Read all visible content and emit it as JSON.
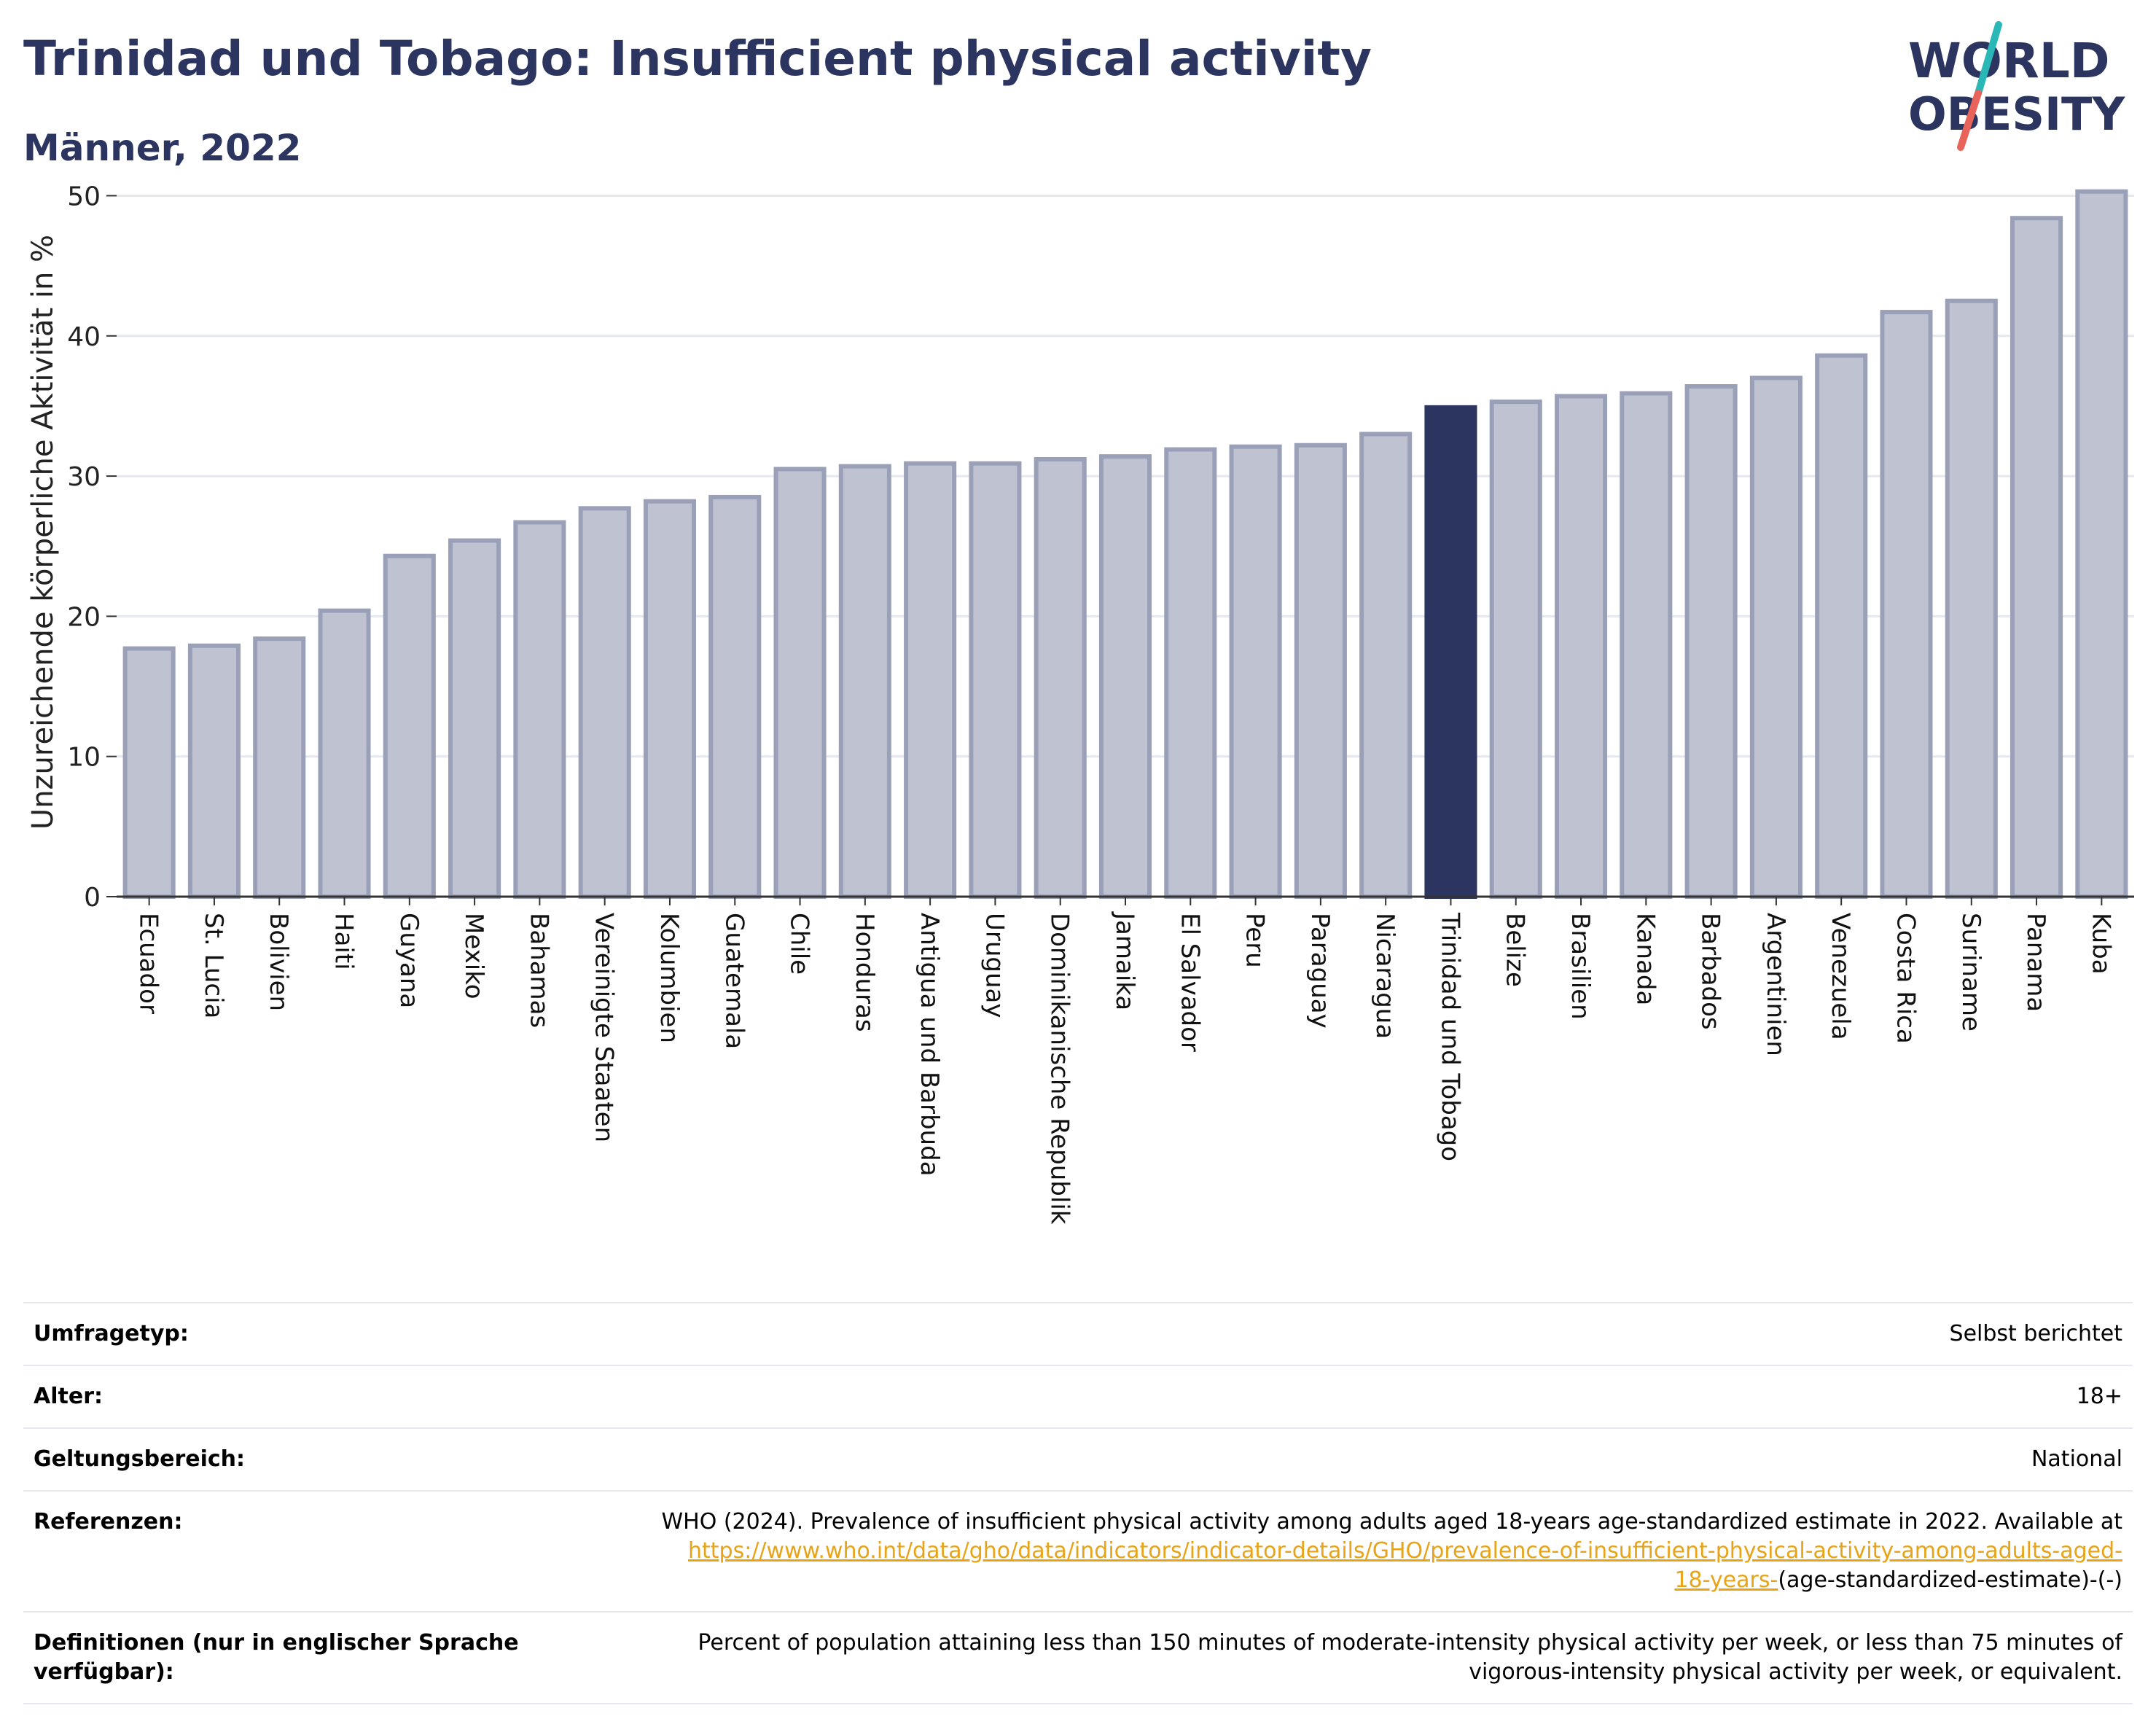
{
  "header": {
    "title": "Trinidad und Tobago: Insufficient physical activity",
    "subtitle": "Männer, 2022"
  },
  "logo": {
    "line1": "WORLD",
    "line2": "OBESITY",
    "colors": {
      "text": "#2b3560",
      "slash_top": "#2ab7b5",
      "slash_bottom": "#e8635a"
    }
  },
  "colors": {
    "bar_fill": "#bfc3d1",
    "bar_stroke": "#9aa0b8",
    "highlight": "#2b3560",
    "grid": "#e6e8ef",
    "axis": "#333333"
  },
  "chart_data": {
    "type": "bar",
    "title": "Trinidad und Tobago: Insufficient physical activity",
    "subtitle": "Männer, 2022",
    "xlabel": "",
    "ylabel": "Unzureichende körperliche Aktivität in %",
    "ylim": [
      0,
      52
    ],
    "yticks": [
      0,
      10,
      20,
      30,
      40,
      50
    ],
    "grid": true,
    "highlight": "Trinidad und Tobago",
    "categories": [
      "Ecuador",
      "St. Lucia",
      "Bolivien",
      "Haiti",
      "Guyana",
      "Mexiko",
      "Bahamas",
      "Vereinigte Staaten",
      "Kolumbien",
      "Guatemala",
      "Chile",
      "Honduras",
      "Antigua und Barbuda",
      "Uruguay",
      "Dominikanische Republik",
      "Jamaika",
      "El Salvador",
      "Peru",
      "Paraguay",
      "Nicaragua",
      "Trinidad und Tobago",
      "Belize",
      "Brasilien",
      "Kanada",
      "Barbados",
      "Argentinien",
      "Venezuela",
      "Costa Rica",
      "Suriname",
      "Panama",
      "Kuba"
    ],
    "values": [
      17.7,
      17.9,
      18.4,
      20.4,
      24.3,
      25.4,
      26.7,
      27.7,
      28.2,
      28.5,
      30.5,
      30.7,
      30.9,
      30.9,
      31.2,
      31.4,
      31.9,
      32.1,
      32.2,
      33.0,
      34.9,
      35.3,
      35.7,
      35.9,
      36.4,
      37.0,
      38.6,
      41.7,
      42.5,
      48.4,
      50.3
    ]
  },
  "footer": {
    "survey_label": "Umfragetyp:",
    "survey_value": "Selbst berichtet",
    "age_label": "Alter:",
    "age_value": "18+",
    "scope_label": "Geltungsbereich:",
    "scope_value": "National",
    "ref_label": "Referenzen:",
    "ref_text": "WHO (2024). Prevalence of insufficient physical activity among adults aged 18-years age-standardized estimate in 2022. Available at",
    "ref_link_1": "https://www.who.int/data/gho/data/indicators/indicator-details/GHO/prevalence-of-insufficient-physical-activity-among-adults-aged-",
    "ref_link_2": "18-years-",
    "ref_tail": "(age-standardized-estimate)-(-)",
    "def_label_1": "Definitionen (nur in englischer Sprache",
    "def_label_2": "verfügbar):",
    "def_text_1": "Percent of population attaining less than 150 minutes of moderate-intensity physical activity per week, or less than 75 minutes of",
    "def_text_2": "vigorous-intensity physical activity per week, or equivalent."
  }
}
